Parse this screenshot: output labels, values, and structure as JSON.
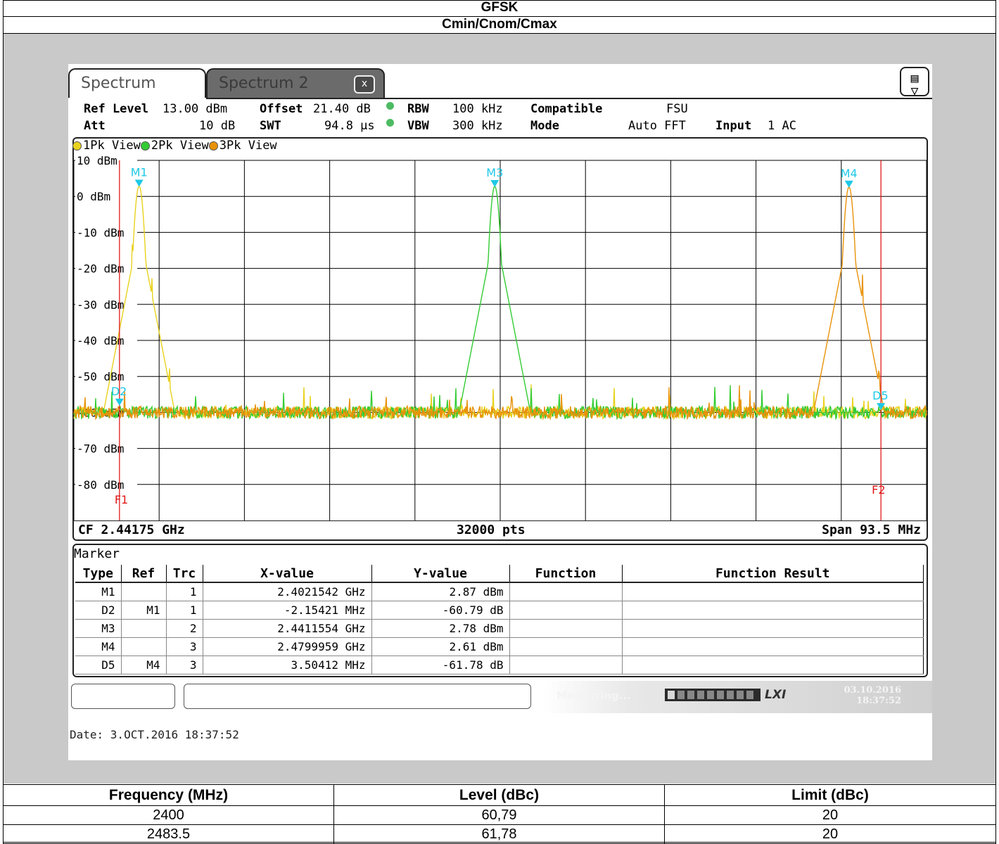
{
  "header": {
    "title": "GFSK",
    "subtitle": "Cmin/Cnom/Cmax"
  },
  "analyzer": {
    "tabs": [
      {
        "label": "Spectrum"
      },
      {
        "label": "Spectrum 2"
      }
    ],
    "tab_close": "x",
    "settings": {
      "ref_level_label": "Ref Level",
      "ref_level_value": "13.00 dBm",
      "offset_label": "Offset",
      "offset_value": "21.40 dB",
      "rbw_label": "RBW",
      "rbw_value": "100 kHz",
      "compatible_label": "Compatible",
      "compatible_value": "FSU",
      "att_label": "Att",
      "att_value": "10 dB",
      "swt_label": "SWT",
      "swt_value": "94.8 µs",
      "vbw_label": "VBW",
      "vbw_value": "300 kHz",
      "mode_label": "Mode",
      "mode_value": "Auto FFT",
      "input_label": "Input",
      "input_value": "1 AC"
    },
    "legend": [
      {
        "label": "1Pk View",
        "color": "#e8d21e"
      },
      {
        "label": "2Pk View",
        "color": "#33cc33"
      },
      {
        "label": "3Pk View",
        "color": "#e8920a"
      }
    ],
    "footer": {
      "cf": "CF 2.44175 GHz",
      "pts": "32000 pts",
      "span": "Span 93.5 MHz"
    },
    "marker_title": "Marker",
    "marker_columns": [
      "Type",
      "Ref",
      "Trc",
      "X-value",
      "Y-value",
      "Function",
      "Function Result"
    ],
    "markers": [
      {
        "type": "M1",
        "ref": "",
        "trc": "1",
        "x": "2.4021542 GHz",
        "y": "2.87 dBm",
        "function": "",
        "result": ""
      },
      {
        "type": "D2",
        "ref": "M1",
        "trc": "1",
        "x": "-2.15421 MHz",
        "y": "-60.79 dB",
        "function": "",
        "result": ""
      },
      {
        "type": "M3",
        "ref": "",
        "trc": "2",
        "x": "2.4411554 GHz",
        "y": "2.78 dBm",
        "function": "",
        "result": ""
      },
      {
        "type": "M4",
        "ref": "",
        "trc": "3",
        "x": "2.4799959 GHz",
        "y": "2.61 dBm",
        "function": "",
        "result": ""
      },
      {
        "type": "D5",
        "ref": "M4",
        "trc": "3",
        "x": "3.50412 MHz",
        "y": "-61.78 dB",
        "function": "",
        "result": ""
      }
    ],
    "status": {
      "measuring": "Measuring...",
      "lxi": "LXI",
      "date": "03.10.2016",
      "time": "18:37:52"
    },
    "date_stamp": "Date: 3.OCT.2016  18:37:52"
  },
  "chart_data": {
    "type": "line",
    "ylabel_unit": "dBm",
    "y_ticks": [
      "10 dBm",
      "0 dBm",
      "-10 dBm",
      "-20 dBm",
      "-30 dBm",
      "-40 dBm",
      "-50 dBm",
      "-60 dBm",
      "-70 dBm",
      "-80 dBm"
    ],
    "ylim": [
      -90,
      10
    ],
    "xlim_ghz": [
      2.395,
      2.4885
    ],
    "grid": true,
    "series": [
      {
        "name": "1Pk View",
        "color": "#e8d21e",
        "peak_ghz": 2.4021542,
        "peak_dbm": 2.87,
        "floor_dbm": -60
      },
      {
        "name": "2Pk View",
        "color": "#33cc33",
        "peak_ghz": 2.4411554,
        "peak_dbm": 2.78,
        "floor_dbm": -60
      },
      {
        "name": "3Pk View",
        "color": "#e8920a",
        "peak_ghz": 2.4799959,
        "peak_dbm": 2.61,
        "floor_dbm": -60
      }
    ],
    "markers": [
      {
        "label": "M1",
        "x_ghz": 2.4021542,
        "y_dbm": 2.87
      },
      {
        "label": "D2",
        "x_ghz": 2.4,
        "y_dbm": -57.92
      },
      {
        "label": "M3",
        "x_ghz": 2.4411554,
        "y_dbm": 2.78
      },
      {
        "label": "M4",
        "x_ghz": 2.4799959,
        "y_dbm": 2.61
      },
      {
        "label": "D5",
        "x_ghz": 2.4835,
        "y_dbm": -59.17
      }
    ],
    "limit_lines": [
      {
        "label": "F1",
        "x_ghz": 2.4
      },
      {
        "label": "F2",
        "x_ghz": 2.4835
      }
    ]
  },
  "results": {
    "columns": [
      "Frequency (MHz)",
      "Level (dBc)",
      "Limit (dBc)"
    ],
    "rows": [
      [
        "2400",
        "60,79",
        "20"
      ],
      [
        "2483.5",
        "61,78",
        "20"
      ]
    ]
  }
}
